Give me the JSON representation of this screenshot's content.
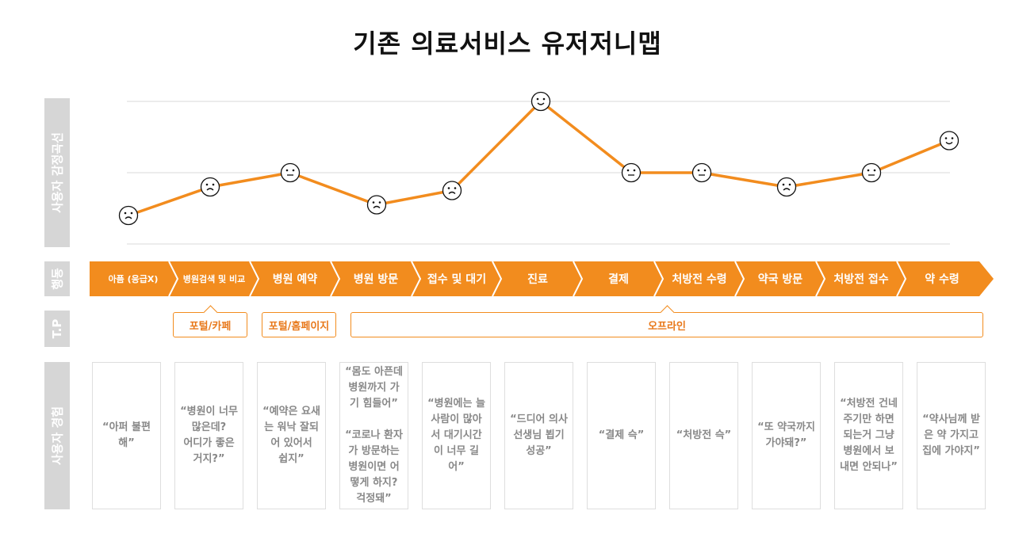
{
  "title": "기존 의료서비스 유저저니맵",
  "labels": {
    "emotion": "사용자 감정곡선",
    "action": "행동",
    "tp": "T.P",
    "experience": "사용자 경험"
  },
  "colors": {
    "accent": "#f28c1e",
    "label_bg": "#d6d6d6",
    "grid": "#d9d9d9",
    "card_border": "#dedede"
  },
  "steps": [
    {
      "label": "아픔 (응급X)",
      "emotion": "sad"
    },
    {
      "label": "병원검색 및 비교",
      "emotion": "sad"
    },
    {
      "label": "병원 예약",
      "emotion": "neutral"
    },
    {
      "label": "병원 방문",
      "emotion": "sad"
    },
    {
      "label": "접수 및 대기",
      "emotion": "sad"
    },
    {
      "label": "진료",
      "emotion": "happy"
    },
    {
      "label": "결제",
      "emotion": "neutral"
    },
    {
      "label": "처방전 수령",
      "emotion": "neutral"
    },
    {
      "label": "약국 방문",
      "emotion": "sad"
    },
    {
      "label": "처방전 접수",
      "emotion": "neutral"
    },
    {
      "label": "약 수령",
      "emotion": "happy"
    }
  ],
  "chart_data": {
    "type": "line",
    "title": "사용자 감정곡선",
    "categories": [
      "아픔 (응급X)",
      "병원검색 및 비교",
      "병원 예약",
      "병원 방문",
      "접수 및 대기",
      "진료",
      "결제",
      "처방전 수령",
      "약국 방문",
      "처방전 접수",
      "약 수령"
    ],
    "values": [
      -0.6,
      -0.2,
      0.0,
      -0.45,
      -0.25,
      1.0,
      0.0,
      0.0,
      -0.2,
      0.0,
      0.45
    ],
    "ylim": [
      -1,
      1
    ],
    "grid": true
  },
  "touchpoints": [
    {
      "label": "포털/카페"
    },
    {
      "label": "포털/홈페이지"
    },
    {
      "label": "오프라인"
    }
  ],
  "experiences": [
    "“아퍼 불편\n해”",
    "“병원이 너무\n많은데?\n어디가 좋은\n거지?”",
    "“예약은 요새\n는 워낙 잘되\n어 있어서\n쉽지”",
    "“몸도 아픈데\n병원까지 가\n기 힘들어”\n\n“코로나 환자\n가 방문하는\n병원이면 어\n떻게 하지?\n걱정돼”",
    "“병원에는 늘\n사람이 많아\n서 대기시간\n이 너무 길어”",
    "“드디어 의사\n선생님 뵙기\n성공”",
    "“결제 슥”",
    "“처방전 슥”",
    "“또 약국까지\n가야돼?”",
    "“처방전 건네\n주기만 하면\n되는거 그냥\n병원에서 보\n내면 안되나”",
    "“약사님께 받\n은 약 가지고\n집에 가야지”"
  ]
}
